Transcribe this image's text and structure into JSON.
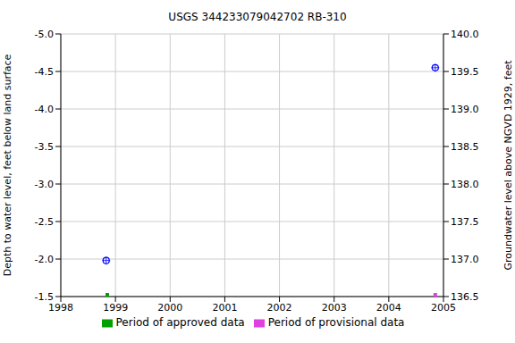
{
  "chart_data": {
    "type": "scatter",
    "title": "USGS 344233079042702 RB-310",
    "y_label": "Depth to water level, feet below land surface",
    "y2_label": "Groundwater level above NGVD 1929, feet",
    "x": [
      1998.83,
      2004.85
    ],
    "values": [
      -1.98,
      -4.55
    ],
    "color": "#0000ff",
    "marker": "circle",
    "xlim": [
      1998,
      2005
    ],
    "xticks": [
      1998,
      1999,
      2000,
      2001,
      2002,
      2003,
      2004,
      2005
    ],
    "ylim": [
      -5,
      -1.5
    ],
    "yticks": [
      {
        "value": -5,
        "label": "-5.0"
      },
      -4.5,
      {
        "value": -4,
        "label": "-4.0"
      },
      -3.5,
      {
        "value": -3,
        "label": "-3.0"
      },
      -2.5,
      {
        "value": -2,
        "label": "-2.0"
      },
      -1.5
    ],
    "y2lim": [
      136.5,
      140
    ],
    "y2ticks": [
      136.5,
      {
        "value": 137,
        "label": "137.0"
      },
      137.5,
      {
        "value": 138,
        "label": "138.0"
      },
      138.5,
      {
        "value": 139,
        "label": "139.0"
      },
      139.5,
      {
        "value": 140,
        "label": "140.0"
      }
    ],
    "grid": true,
    "legend": "bottom",
    "periods": [
      {
        "name": "Period of approved data",
        "color": "#00a000",
        "x": 1998.85
      },
      {
        "name": "Period of provisional data",
        "color": "#e040e0",
        "x": 2004.85
      }
    ]
  }
}
